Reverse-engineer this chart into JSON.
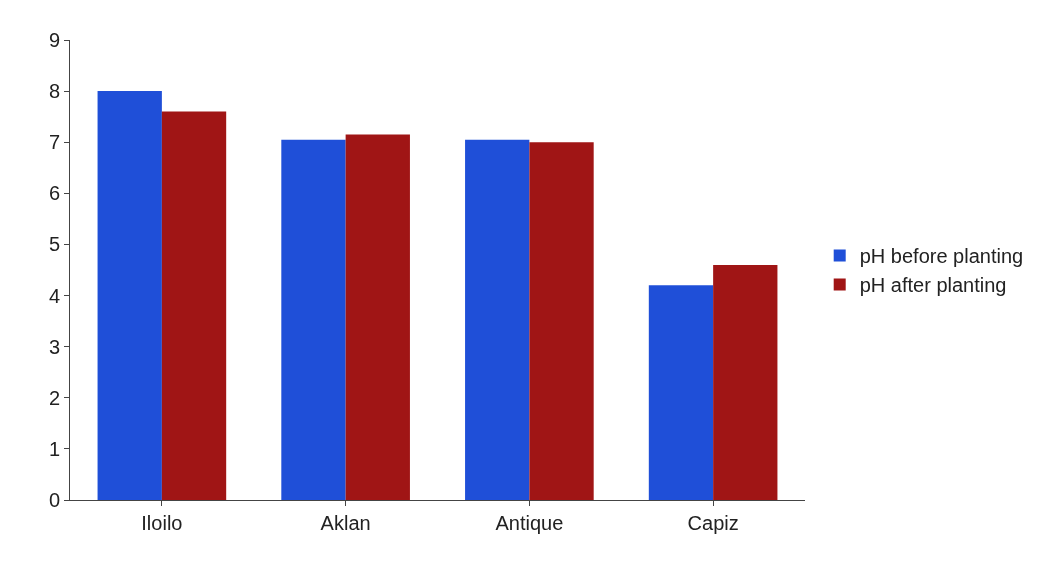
{
  "chart_data": {
    "type": "bar",
    "categories": [
      "Iloilo",
      "Aklan",
      "Antique",
      "Capiz"
    ],
    "series": [
      {
        "name": "pH before planting",
        "color": "#1f4fd8",
        "values": [
          8.0,
          7.05,
          7.05,
          4.2
        ]
      },
      {
        "name": "pH after planting",
        "color": "#a01515",
        "values": [
          7.6,
          7.15,
          7.0,
          4.6
        ]
      }
    ],
    "ylim": [
      0,
      9
    ],
    "yticks": [
      0,
      1,
      2,
      3,
      4,
      5,
      6,
      7,
      8,
      9
    ],
    "legend": "right"
  }
}
